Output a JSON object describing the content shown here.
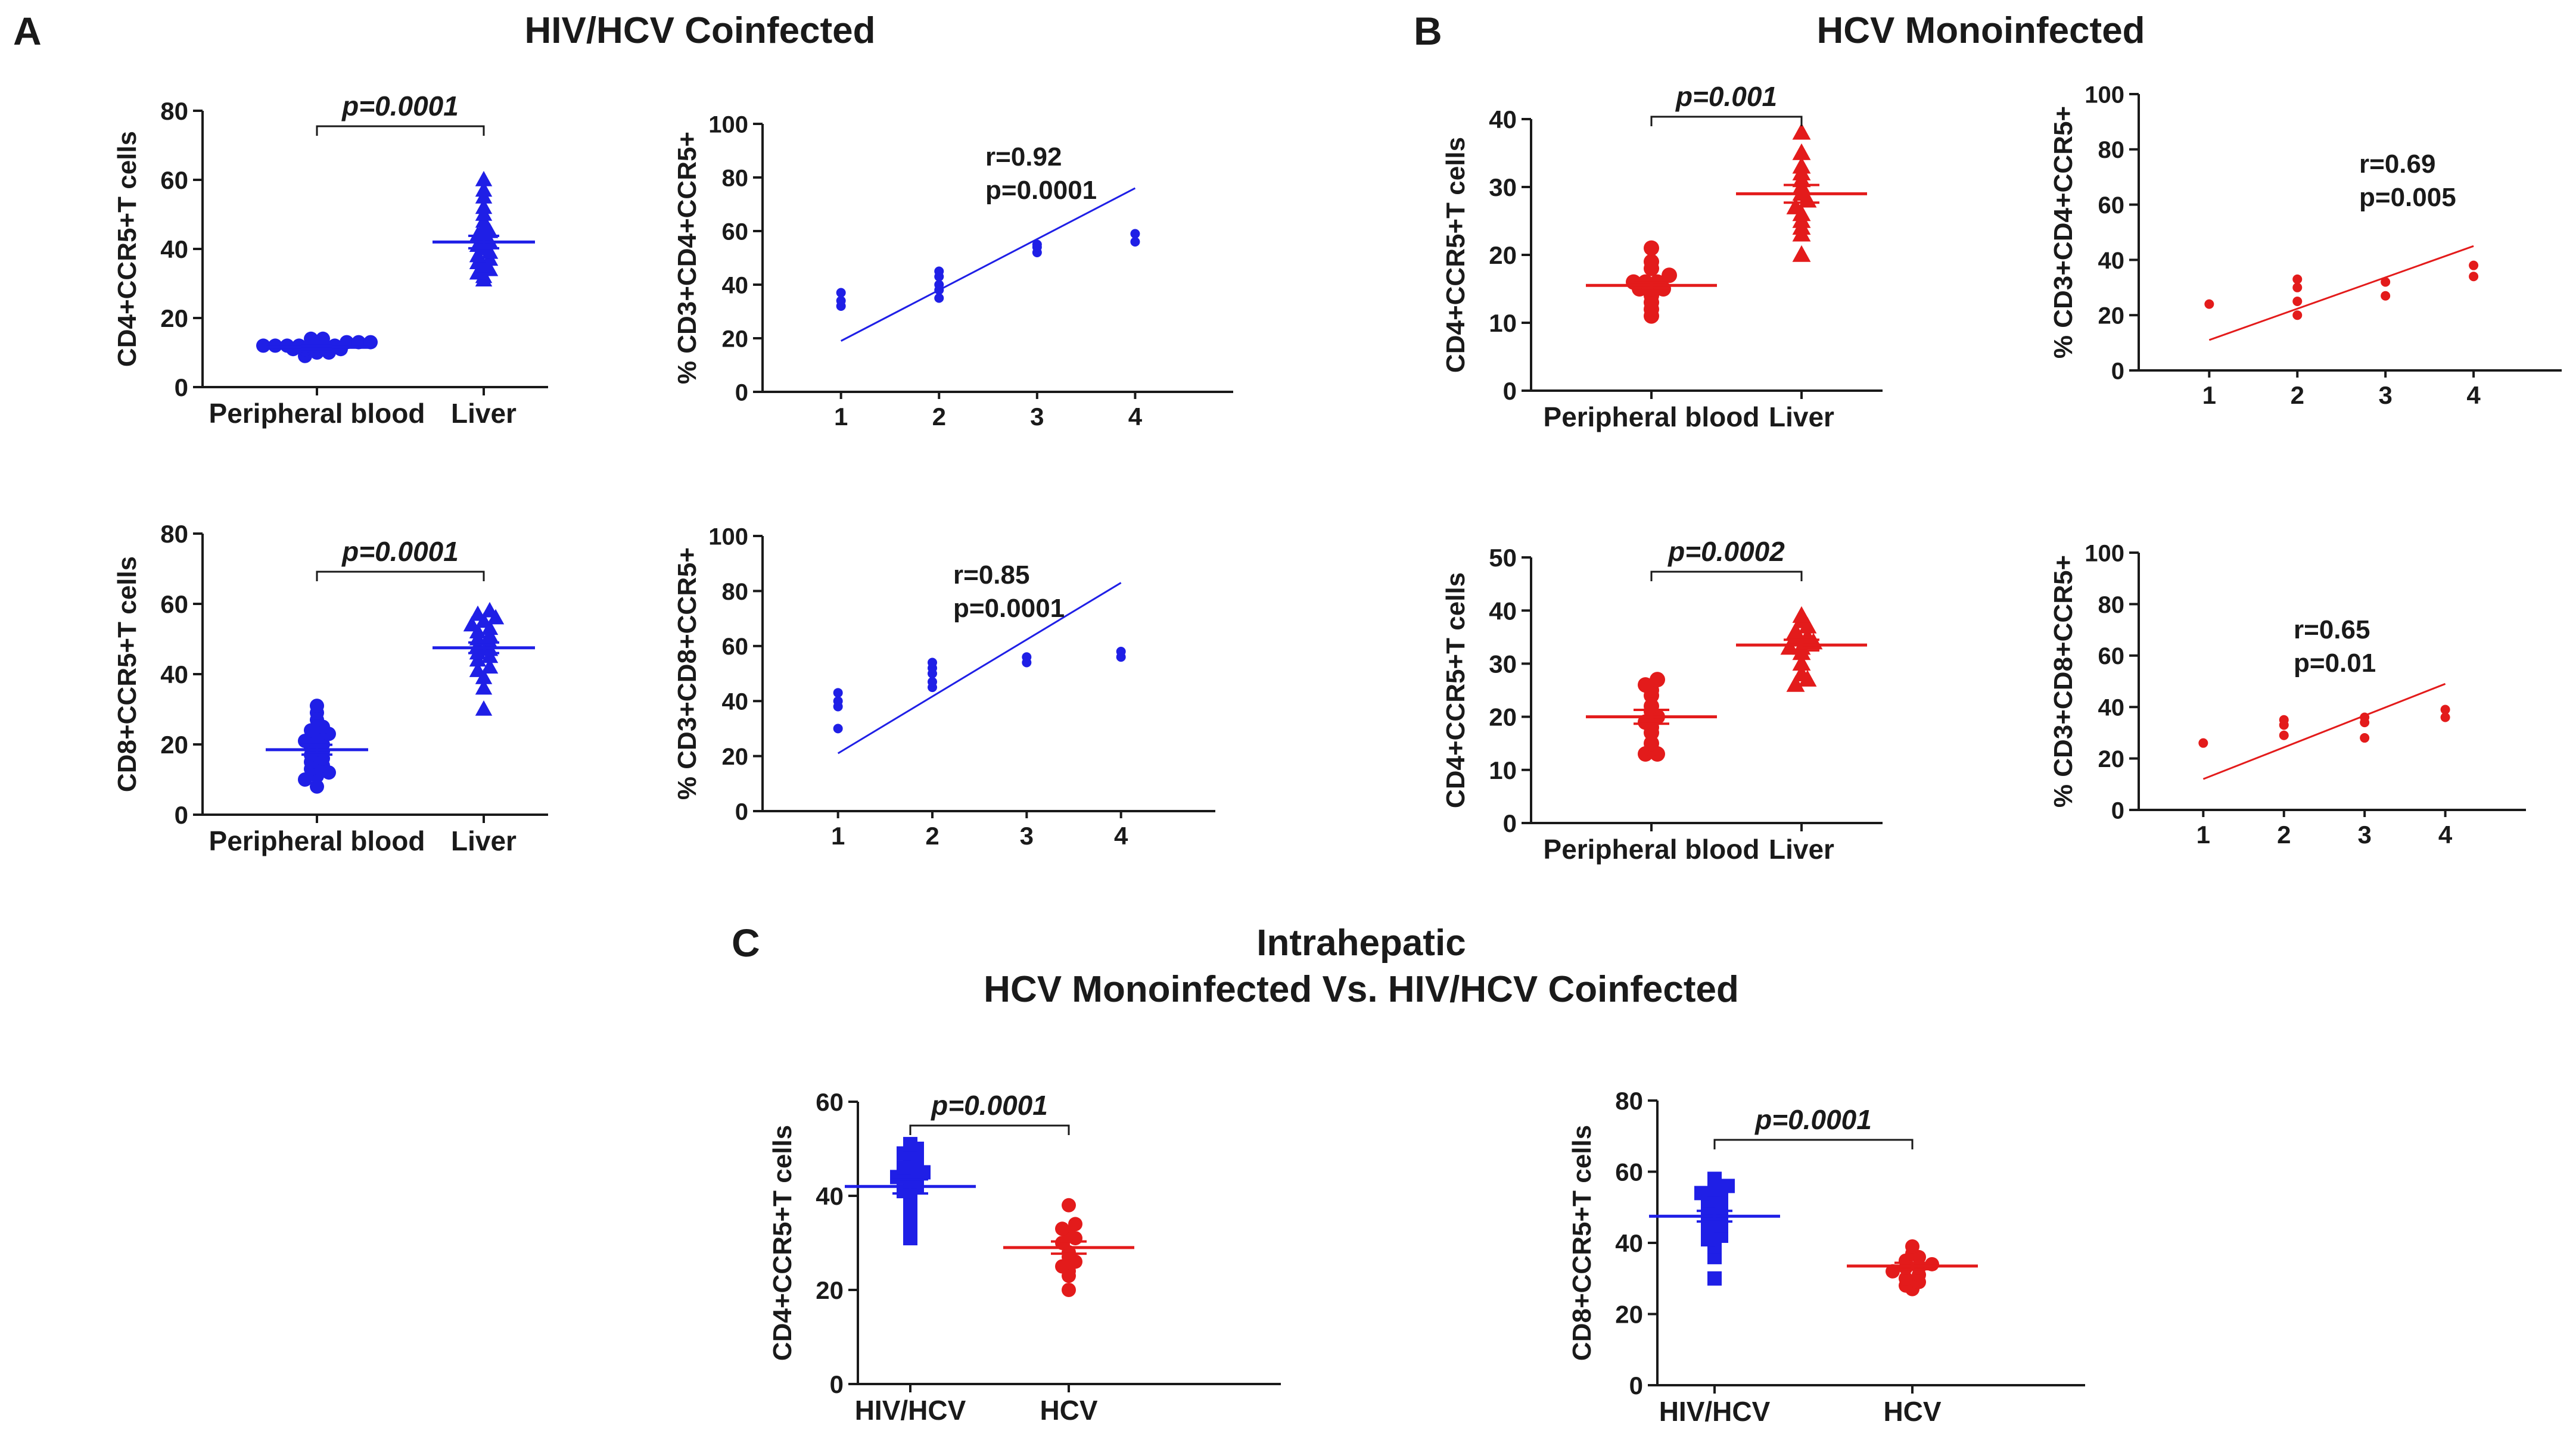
{
  "panels": {
    "A": {
      "label": "A",
      "title": "HIV/HCV Coinfected"
    },
    "B": {
      "label": "B",
      "title": "HCV Monoinfected"
    },
    "C": {
      "label": "C",
      "title_line1": "Intrahepatic",
      "title_line2": "HCV Monoinfected Vs. HIV/HCV Coinfected"
    }
  },
  "colors": {
    "blue": "#1f1fe6",
    "red": "#e31b1b",
    "axis": "#1a1a1a"
  },
  "chart_data": [
    {
      "id": "A1",
      "type": "scatter",
      "subtype": "dot-plot",
      "panel": "A",
      "ylabel": "CD4+CCR5+T cells",
      "ylim": [
        0,
        80
      ],
      "yticks": [
        0,
        20,
        40,
        60,
        80
      ],
      "categories": [
        "Peripheral blood",
        "Liver"
      ],
      "p_label": "p=0.0001",
      "series": [
        {
          "name": "Peripheral blood",
          "color": "#1f1fe6",
          "marker": "circle",
          "values": [
            9,
            10,
            10,
            11,
            11,
            11,
            11,
            11,
            12,
            12,
            12,
            12,
            12,
            12,
            12,
            13,
            13,
            13,
            14,
            14
          ],
          "mean": 11.5,
          "sem": 0.5
        },
        {
          "name": "Liver",
          "color": "#1f1fe6",
          "marker": "triangle",
          "values": [
            31,
            32,
            33,
            34,
            35,
            36,
            37,
            38,
            39,
            40,
            41,
            42,
            43,
            44,
            45,
            46,
            48,
            50,
            52,
            55,
            57,
            60
          ],
          "mean": 42,
          "sem": 1.8
        }
      ]
    },
    {
      "id": "A2",
      "type": "scatter",
      "subtype": "correlation",
      "panel": "A",
      "ylabel": "% CD3+CD4+CCR5+",
      "ylim": [
        0,
        100
      ],
      "yticks": [
        0,
        20,
        40,
        60,
        80,
        100
      ],
      "xlim": [
        0.2,
        5
      ],
      "xticks": [
        1,
        2,
        3,
        4
      ],
      "r_label": "r=0.92",
      "p_label": "p=0.0001",
      "color": "#1f1fe6",
      "points": [
        [
          1,
          32
        ],
        [
          1,
          34
        ],
        [
          1,
          37
        ],
        [
          2,
          35
        ],
        [
          2,
          38
        ],
        [
          2,
          40
        ],
        [
          2,
          43
        ],
        [
          2,
          45
        ],
        [
          3,
          52
        ],
        [
          3,
          54
        ],
        [
          3,
          55
        ],
        [
          4,
          56
        ],
        [
          4,
          59
        ]
      ],
      "fit": {
        "x1": 1,
        "y1": 19,
        "x2": 4,
        "y2": 76
      }
    },
    {
      "id": "A3",
      "type": "scatter",
      "subtype": "dot-plot",
      "panel": "A",
      "ylabel": "CD8+CCR5+T cells",
      "ylim": [
        0,
        80
      ],
      "yticks": [
        0,
        20,
        40,
        60,
        80
      ],
      "categories": [
        "Peripheral blood",
        "Liver"
      ],
      "p_label": "p=0.0001",
      "series": [
        {
          "name": "Peripheral blood",
          "color": "#1f1fe6",
          "marker": "circle",
          "values": [
            8,
            10,
            11,
            12,
            13,
            14,
            15,
            16,
            17,
            18,
            19,
            20,
            21,
            22,
            23,
            24,
            25,
            27,
            29,
            31
          ],
          "mean": 18.5,
          "sem": 1.4
        },
        {
          "name": "Liver",
          "color": "#1f1fe6",
          "marker": "triangle",
          "values": [
            30,
            36,
            39,
            41,
            42,
            44,
            45,
            46,
            47,
            48,
            49,
            50,
            51,
            52,
            53,
            54,
            55,
            56,
            57,
            58
          ],
          "mean": 47.5,
          "sem": 1.5
        }
      ]
    },
    {
      "id": "A4",
      "type": "scatter",
      "subtype": "correlation",
      "panel": "A",
      "ylabel": "% CD3+CD8+CCR5+",
      "ylim": [
        0,
        100
      ],
      "yticks": [
        0,
        20,
        40,
        60,
        80,
        100
      ],
      "xlim": [
        0.2,
        5
      ],
      "xticks": [
        1,
        2,
        3,
        4
      ],
      "r_label": "r=0.85",
      "p_label": "p=0.0001",
      "color": "#1f1fe6",
      "points": [
        [
          1,
          30
        ],
        [
          1,
          38
        ],
        [
          1,
          40
        ],
        [
          1,
          43
        ],
        [
          2,
          45
        ],
        [
          2,
          47
        ],
        [
          2,
          50
        ],
        [
          2,
          52
        ],
        [
          2,
          54
        ],
        [
          3,
          54
        ],
        [
          3,
          56
        ],
        [
          4,
          56
        ],
        [
          4,
          58
        ]
      ],
      "fit": {
        "x1": 1,
        "y1": 21,
        "x2": 4,
        "y2": 83
      }
    },
    {
      "id": "B1",
      "type": "scatter",
      "subtype": "dot-plot",
      "panel": "B",
      "ylabel": "CD4+CCR5+T cells",
      "ylim": [
        0,
        40
      ],
      "yticks": [
        0,
        10,
        20,
        30,
        40
      ],
      "categories": [
        "Peripheral blood",
        "Liver"
      ],
      "p_label": "p=0.001",
      "series": [
        {
          "name": "Peripheral blood",
          "color": "#e31b1b",
          "marker": "circle",
          "values": [
            11,
            12,
            13,
            14,
            15,
            15,
            15,
            16,
            16,
            16,
            17,
            18,
            19,
            21
          ],
          "mean": 15.5,
          "sem": 0.8
        },
        {
          "name": "Liver",
          "color": "#e31b1b",
          "marker": "triangle",
          "values": [
            20,
            23,
            24,
            25,
            26,
            27,
            28,
            29,
            30,
            31,
            32,
            33,
            35,
            38
          ],
          "mean": 29,
          "sem": 1.3
        }
      ]
    },
    {
      "id": "B2",
      "type": "scatter",
      "subtype": "correlation",
      "panel": "B",
      "ylabel": "% CD3+CD4+CCR5+",
      "ylim": [
        0,
        100
      ],
      "yticks": [
        0,
        20,
        40,
        60,
        80,
        100
      ],
      "xlim": [
        0.2,
        5
      ],
      "xticks": [
        1,
        2,
        3,
        4
      ],
      "r_label": "r=0.69",
      "p_label": "p=0.005",
      "color": "#e31b1b",
      "points": [
        [
          1,
          24
        ],
        [
          2,
          20
        ],
        [
          2,
          25
        ],
        [
          2,
          30
        ],
        [
          2,
          33
        ],
        [
          3,
          27
        ],
        [
          3,
          32
        ],
        [
          4,
          34
        ],
        [
          4,
          38
        ]
      ],
      "fit": {
        "x1": 1,
        "y1": 11,
        "x2": 4,
        "y2": 45
      }
    },
    {
      "id": "B3",
      "type": "scatter",
      "subtype": "dot-plot",
      "panel": "B",
      "ylabel": "CD4+CCR5+T cells",
      "ylim": [
        0,
        50
      ],
      "yticks": [
        0,
        10,
        20,
        30,
        40,
        50
      ],
      "categories": [
        "Peripheral blood",
        "Liver"
      ],
      "p_label": "p=0.0002",
      "series": [
        {
          "name": "Peripheral blood",
          "color": "#e31b1b",
          "marker": "circle",
          "values": [
            13,
            13,
            14,
            15,
            17,
            18,
            19,
            20,
            21,
            22,
            24,
            25,
            26,
            27
          ],
          "mean": 20,
          "sem": 1.3
        },
        {
          "name": "Liver",
          "color": "#e31b1b",
          "marker": "triangle",
          "values": [
            26,
            27,
            28,
            30,
            32,
            33,
            33,
            34,
            35,
            35,
            36,
            37,
            38,
            39
          ],
          "mean": 33.5,
          "sem": 1.0
        }
      ]
    },
    {
      "id": "B4",
      "type": "scatter",
      "subtype": "correlation",
      "panel": "B",
      "ylabel": "% CD3+CD8+CCR5+",
      "ylim": [
        0,
        100
      ],
      "yticks": [
        0,
        20,
        40,
        60,
        80,
        100
      ],
      "xlim": [
        0.2,
        5
      ],
      "xticks": [
        1,
        2,
        3,
        4
      ],
      "r_label": "r=0.65",
      "p_label": "p=0.01",
      "color": "#e31b1b",
      "points": [
        [
          1,
          26
        ],
        [
          2,
          29
        ],
        [
          2,
          33
        ],
        [
          2,
          35
        ],
        [
          3,
          28
        ],
        [
          3,
          34
        ],
        [
          3,
          36
        ],
        [
          4,
          36
        ],
        [
          4,
          39
        ]
      ],
      "fit": {
        "x1": 1,
        "y1": 12,
        "x2": 4,
        "y2": 49
      }
    },
    {
      "id": "C1",
      "type": "scatter",
      "subtype": "dot-plot",
      "panel": "C",
      "ylabel": "CD4+CCR5+T cells",
      "ylim": [
        0,
        60
      ],
      "yticks": [
        0,
        20,
        40,
        60
      ],
      "categories": [
        "HIV/HCV",
        "HCV"
      ],
      "p_label": "p=0.0001",
      "series": [
        {
          "name": "HIV/HCV",
          "color": "#1f1fe6",
          "marker": "square",
          "values": [
            31,
            32,
            33,
            35,
            37,
            38,
            40,
            41,
            42,
            43,
            44,
            45,
            45,
            46,
            47,
            48,
            49,
            50,
            51
          ],
          "mean": 42,
          "sem": 1.5
        },
        {
          "name": "HCV",
          "color": "#e31b1b",
          "marker": "circle",
          "values": [
            20,
            23,
            24,
            25,
            26,
            27,
            28,
            30,
            31,
            32,
            33,
            34,
            38
          ],
          "mean": 29,
          "sem": 1.3
        }
      ]
    },
    {
      "id": "C2",
      "type": "scatter",
      "subtype": "dot-plot",
      "panel": "C",
      "ylabel": "CD8+CCR5+T cells",
      "ylim": [
        0,
        80
      ],
      "yticks": [
        0,
        20,
        40,
        60,
        80
      ],
      "categories": [
        "HIV/HCV",
        "HCV"
      ],
      "p_label": "p=0.0001",
      "series": [
        {
          "name": "HIV/HCV",
          "color": "#1f1fe6",
          "marker": "square",
          "values": [
            30,
            36,
            39,
            41,
            42,
            44,
            45,
            46,
            47,
            48,
            49,
            50,
            51,
            52,
            53,
            54,
            55,
            56,
            58
          ],
          "mean": 47.5,
          "sem": 1.5
        },
        {
          "name": "HCV",
          "color": "#e31b1b",
          "marker": "circle",
          "values": [
            27,
            28,
            29,
            30,
            31,
            32,
            33,
            33,
            34,
            35,
            36,
            37,
            39
          ],
          "mean": 33.5,
          "sem": 0.9
        }
      ]
    }
  ]
}
